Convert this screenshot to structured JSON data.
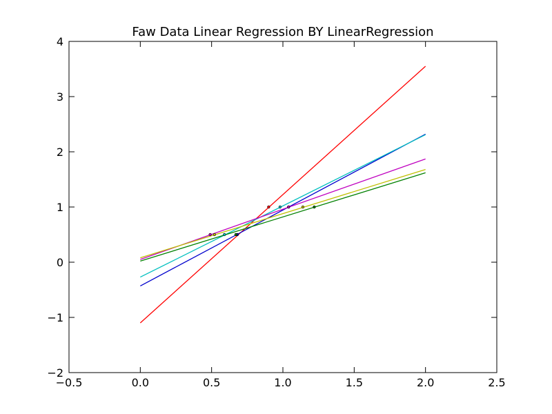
{
  "chart_data": {
    "type": "line",
    "title": "Faw Data Linear Regression BY LinearRegression",
    "xlabel": "",
    "ylabel": "",
    "xlim": [
      -0.5,
      2.5
    ],
    "ylim": [
      -2,
      4
    ],
    "xticks": [
      -0.5,
      0.0,
      0.5,
      1.0,
      1.5,
      2.0,
      2.5
    ],
    "yticks": [
      -2,
      -1,
      0,
      1,
      2,
      3,
      4
    ],
    "xtick_labels": [
      "−0.5",
      "0.0",
      "0.5",
      "1.0",
      "1.5",
      "2.0",
      "2.5"
    ],
    "ytick_labels": [
      "−2",
      "−1",
      "0",
      "1",
      "2",
      "3",
      "4"
    ],
    "grid": false,
    "series": [
      {
        "color": "#ff0000",
        "x": [
          0.0,
          2.0
        ],
        "y": [
          -1.1,
          3.55
        ],
        "points": [
          [
            0.68,
            0.5
          ],
          [
            0.9,
            1.0
          ]
        ]
      },
      {
        "color": "#0000cc",
        "x": [
          0.0,
          2.0
        ],
        "y": [
          -0.43,
          2.32
        ],
        "points": [
          [
            0.68,
            0.5
          ],
          [
            1.04,
            1.0
          ]
        ]
      },
      {
        "color": "#00bfbf",
        "x": [
          0.0,
          2.0
        ],
        "y": [
          -0.27,
          2.31
        ],
        "points": [
          [
            0.59,
            0.5
          ],
          [
            0.98,
            1.0
          ]
        ]
      },
      {
        "color": "#bf00bf",
        "x": [
          0.0,
          2.0
        ],
        "y": [
          0.05,
          1.87
        ],
        "points": [
          [
            0.49,
            0.5
          ],
          [
            1.04,
            1.0
          ]
        ]
      },
      {
        "color": "#bfbf00",
        "x": [
          0.0,
          2.0
        ],
        "y": [
          0.08,
          1.68
        ],
        "points": [
          [
            0.52,
            0.5
          ],
          [
            1.14,
            1.0
          ]
        ]
      },
      {
        "color": "#008000",
        "x": [
          0.0,
          2.0
        ],
        "y": [
          0.02,
          1.62
        ],
        "points": [
          [
            0.67,
            0.5
          ],
          [
            1.22,
            1.0
          ]
        ]
      }
    ]
  }
}
